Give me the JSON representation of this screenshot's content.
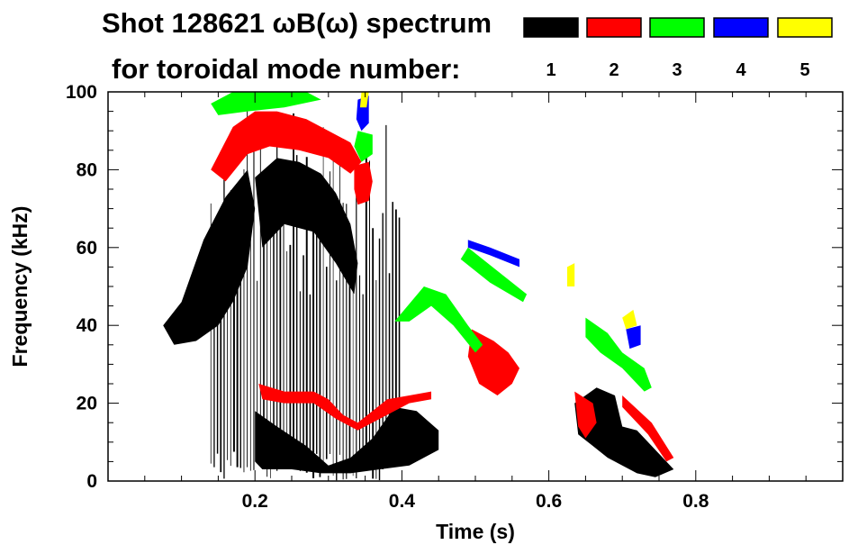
{
  "chart_data": {
    "type": "spectrogram",
    "title_line1": "Shot 128621 ωB(ω) spectrum",
    "title_line2": "for toroidal mode number:",
    "xlabel": "Time (s)",
    "ylabel": "Frequency (kHz)",
    "xlim": [
      0.0,
      1.0
    ],
    "ylim": [
      0,
      100
    ],
    "x_ticks": [
      {
        "value": 0.2,
        "label": "0.2"
      },
      {
        "value": 0.4,
        "label": "0.4"
      },
      {
        "value": 0.6,
        "label": "0.6"
      },
      {
        "value": 0.8,
        "label": "0.8"
      }
    ],
    "y_ticks": [
      {
        "value": 0,
        "label": "0"
      },
      {
        "value": 20,
        "label": "20"
      },
      {
        "value": 40,
        "label": "40"
      },
      {
        "value": 60,
        "label": "60"
      },
      {
        "value": 80,
        "label": "80"
      },
      {
        "value": 100,
        "label": "100"
      }
    ],
    "legend": [
      {
        "n": "1",
        "color": "#000000"
      },
      {
        "n": "2",
        "color": "#ff0000"
      },
      {
        "n": "3",
        "color": "#00ff00"
      },
      {
        "n": "4",
        "color": "#0000ff"
      },
      {
        "n": "5",
        "color": "#ffff00"
      }
    ],
    "features": [
      {
        "mode": 1,
        "kind": "poly",
        "pts": [
          [
            0.075,
            40
          ],
          [
            0.1,
            46
          ],
          [
            0.13,
            62
          ],
          [
            0.16,
            73
          ],
          [
            0.19,
            80
          ],
          [
            0.2,
            70
          ],
          [
            0.19,
            55
          ],
          [
            0.17,
            46
          ],
          [
            0.15,
            40
          ],
          [
            0.12,
            36
          ],
          [
            0.09,
            35
          ]
        ]
      },
      {
        "mode": 1,
        "kind": "poly",
        "pts": [
          [
            0.2,
            78
          ],
          [
            0.23,
            83
          ],
          [
            0.26,
            82
          ],
          [
            0.29,
            79
          ],
          [
            0.31,
            74
          ],
          [
            0.33,
            66
          ],
          [
            0.34,
            56
          ],
          [
            0.335,
            48
          ],
          [
            0.31,
            56
          ],
          [
            0.28,
            64
          ],
          [
            0.24,
            66
          ],
          [
            0.21,
            60
          ]
        ]
      },
      {
        "mode": 1,
        "kind": "poly",
        "pts": [
          [
            0.2,
            18
          ],
          [
            0.23,
            14
          ],
          [
            0.27,
            9
          ],
          [
            0.3,
            4
          ],
          [
            0.33,
            6
          ],
          [
            0.36,
            11
          ],
          [
            0.39,
            19
          ],
          [
            0.42,
            18
          ],
          [
            0.45,
            13
          ],
          [
            0.45,
            8
          ],
          [
            0.41,
            4
          ],
          [
            0.37,
            3
          ],
          [
            0.33,
            2
          ],
          [
            0.29,
            2
          ],
          [
            0.25,
            3
          ],
          [
            0.21,
            3
          ],
          [
            0.2,
            5
          ]
        ]
      },
      {
        "mode": 1,
        "kind": "poly",
        "pts": [
          [
            0.635,
            20
          ],
          [
            0.665,
            24
          ],
          [
            0.69,
            22
          ],
          [
            0.7,
            14
          ],
          [
            0.72,
            13
          ],
          [
            0.745,
            8
          ],
          [
            0.77,
            3
          ],
          [
            0.745,
            1
          ],
          [
            0.72,
            2
          ],
          [
            0.7,
            4
          ],
          [
            0.68,
            6
          ],
          [
            0.66,
            9
          ],
          [
            0.64,
            12
          ]
        ]
      },
      {
        "mode": 2,
        "kind": "poly",
        "pts": [
          [
            0.14,
            80
          ],
          [
            0.17,
            91
          ],
          [
            0.2,
            95
          ],
          [
            0.23,
            95
          ],
          [
            0.27,
            93
          ],
          [
            0.3,
            90
          ],
          [
            0.33,
            87
          ],
          [
            0.345,
            82
          ],
          [
            0.33,
            79
          ],
          [
            0.3,
            83
          ],
          [
            0.26,
            85
          ],
          [
            0.22,
            86
          ],
          [
            0.19,
            84
          ],
          [
            0.16,
            77
          ]
        ]
      },
      {
        "mode": 2,
        "kind": "poly",
        "pts": [
          [
            0.335,
            81
          ],
          [
            0.355,
            82
          ],
          [
            0.36,
            77
          ],
          [
            0.355,
            72
          ],
          [
            0.34,
            71
          ],
          [
            0.335,
            75
          ]
        ]
      },
      {
        "mode": 2,
        "kind": "poly",
        "pts": [
          [
            0.205,
            25
          ],
          [
            0.24,
            23
          ],
          [
            0.28,
            23
          ],
          [
            0.3,
            21
          ],
          [
            0.32,
            17
          ],
          [
            0.34,
            15
          ],
          [
            0.36,
            18
          ],
          [
            0.38,
            21
          ],
          [
            0.41,
            22
          ],
          [
            0.44,
            23
          ],
          [
            0.44,
            21
          ],
          [
            0.41,
            20
          ],
          [
            0.37,
            16
          ],
          [
            0.34,
            13
          ],
          [
            0.31,
            16
          ],
          [
            0.28,
            20
          ],
          [
            0.24,
            20
          ],
          [
            0.21,
            21
          ]
        ]
      },
      {
        "mode": 2,
        "kind": "poly",
        "pts": [
          [
            0.495,
            39
          ],
          [
            0.525,
            36
          ],
          [
            0.545,
            33
          ],
          [
            0.56,
            29
          ],
          [
            0.55,
            25
          ],
          [
            0.53,
            22
          ],
          [
            0.505,
            25
          ],
          [
            0.49,
            32
          ]
        ]
      },
      {
        "mode": 2,
        "kind": "poly",
        "pts": [
          [
            0.635,
            23
          ],
          [
            0.66,
            20
          ],
          [
            0.665,
            15
          ],
          [
            0.65,
            11
          ],
          [
            0.64,
            14
          ]
        ]
      },
      {
        "mode": 2,
        "kind": "poly",
        "pts": [
          [
            0.7,
            22
          ],
          [
            0.74,
            15
          ],
          [
            0.77,
            6
          ],
          [
            0.76,
            5
          ],
          [
            0.735,
            12
          ],
          [
            0.7,
            19
          ]
        ]
      },
      {
        "mode": 3,
        "kind": "poly",
        "pts": [
          [
            0.14,
            97
          ],
          [
            0.17,
            100
          ],
          [
            0.23,
            100
          ],
          [
            0.27,
            100
          ],
          [
            0.29,
            98
          ],
          [
            0.24,
            96
          ],
          [
            0.19,
            95
          ],
          [
            0.15,
            94
          ]
        ]
      },
      {
        "mode": 3,
        "kind": "poly",
        "pts": [
          [
            0.34,
            90
          ],
          [
            0.36,
            89
          ],
          [
            0.36,
            84
          ],
          [
            0.345,
            82
          ],
          [
            0.335,
            86
          ]
        ]
      },
      {
        "mode": 3,
        "kind": "poly",
        "pts": [
          [
            0.39,
            41
          ],
          [
            0.43,
            50
          ],
          [
            0.46,
            48
          ],
          [
            0.49,
            40
          ],
          [
            0.51,
            35
          ],
          [
            0.5,
            33
          ],
          [
            0.47,
            40
          ],
          [
            0.44,
            45
          ],
          [
            0.41,
            41
          ]
        ]
      },
      {
        "mode": 3,
        "kind": "poly",
        "pts": [
          [
            0.49,
            60
          ],
          [
            0.53,
            54
          ],
          [
            0.57,
            48
          ],
          [
            0.565,
            46
          ],
          [
            0.52,
            51
          ],
          [
            0.48,
            57
          ]
        ]
      },
      {
        "mode": 3,
        "kind": "poly",
        "pts": [
          [
            0.65,
            42
          ],
          [
            0.68,
            38
          ],
          [
            0.7,
            33
          ],
          [
            0.73,
            29
          ],
          [
            0.74,
            24
          ],
          [
            0.73,
            23
          ],
          [
            0.7,
            29
          ],
          [
            0.67,
            33
          ],
          [
            0.65,
            37
          ]
        ]
      },
      {
        "mode": 4,
        "kind": "poly",
        "pts": [
          [
            0.34,
            98
          ],
          [
            0.355,
            99
          ],
          [
            0.355,
            92
          ],
          [
            0.345,
            90
          ],
          [
            0.338,
            93
          ]
        ]
      },
      {
        "mode": 4,
        "kind": "poly",
        "pts": [
          [
            0.49,
            62
          ],
          [
            0.52,
            60
          ],
          [
            0.56,
            57
          ],
          [
            0.56,
            55
          ],
          [
            0.52,
            58
          ],
          [
            0.49,
            60
          ]
        ]
      },
      {
        "mode": 4,
        "kind": "poly",
        "pts": [
          [
            0.705,
            39
          ],
          [
            0.725,
            40
          ],
          [
            0.725,
            35
          ],
          [
            0.71,
            34
          ]
        ]
      },
      {
        "mode": 5,
        "kind": "poly",
        "pts": [
          [
            0.7,
            42
          ],
          [
            0.715,
            44
          ],
          [
            0.72,
            40
          ],
          [
            0.705,
            39
          ]
        ]
      },
      {
        "mode": 5,
        "kind": "poly",
        "pts": [
          [
            0.625,
            55
          ],
          [
            0.635,
            56
          ],
          [
            0.635,
            50
          ],
          [
            0.625,
            50
          ]
        ]
      },
      {
        "mode": 5,
        "kind": "poly",
        "pts": [
          [
            0.345,
            100
          ],
          [
            0.355,
            100
          ],
          [
            0.352,
            96
          ],
          [
            0.343,
            96
          ]
        ]
      }
    ],
    "vertical_streaks": {
      "mode": 1,
      "t_start": 0.14,
      "t_end": 0.4,
      "step": 0.0045,
      "f_low": 8,
      "f_high": 96
    }
  }
}
